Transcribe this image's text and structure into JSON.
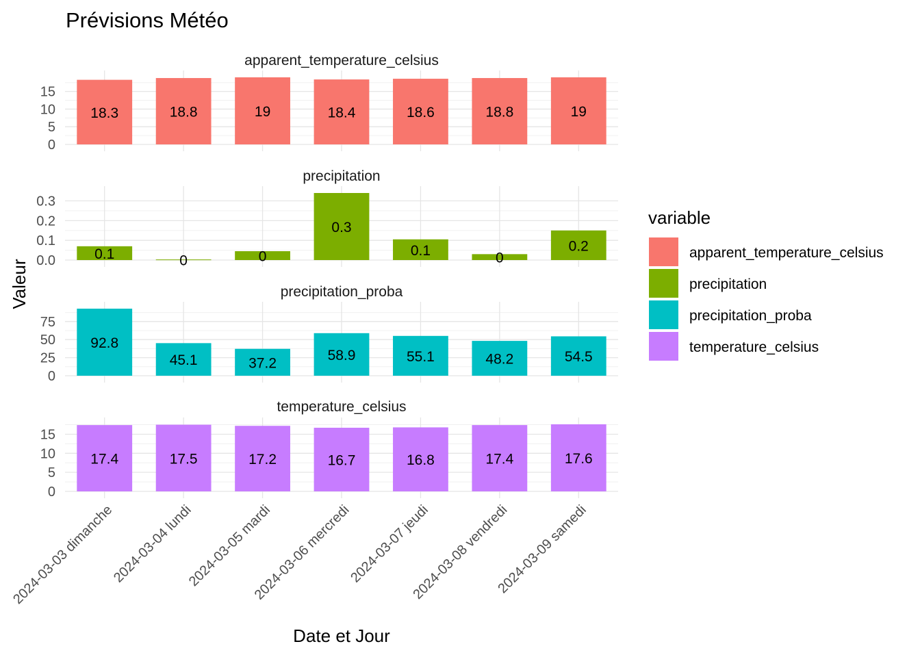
{
  "chart_data": {
    "type": "bar",
    "title": "Prévisions Météo",
    "xlabel": "Date et Jour",
    "ylabel": "Valeur",
    "categories": [
      "2024-03-03 dimanche",
      "2024-03-04 lundi",
      "2024-03-05 mardi",
      "2024-03-06 mercredi",
      "2024-03-07 jeudi",
      "2024-03-08 vendredi",
      "2024-03-09 samedi"
    ],
    "legend": {
      "title": "variable",
      "position": "right"
    },
    "grid": true,
    "panels": [
      {
        "name": "apparent_temperature_celsius",
        "color": "#F8766D",
        "ylim": [
          0,
          19
        ],
        "ticks": [
          0,
          5,
          10,
          15
        ],
        "tick_labels": [
          "0",
          "5",
          "10",
          "15"
        ],
        "values": [
          18.3,
          18.8,
          19.0,
          18.4,
          18.6,
          18.8,
          19.0
        ],
        "labels": [
          "18.3",
          "18.8",
          "19",
          "18.4",
          "18.6",
          "18.8",
          "19"
        ]
      },
      {
        "name": "precipitation",
        "color": "#7CAE00",
        "ylim": [
          0,
          0.34
        ],
        "ticks": [
          0,
          0.1,
          0.2,
          0.3
        ],
        "tick_labels": [
          "0.0",
          "0.1",
          "0.2",
          "0.3"
        ],
        "values": [
          0.07,
          0.003,
          0.045,
          0.34,
          0.105,
          0.03,
          0.15
        ],
        "labels": [
          "0.1",
          "0",
          "0",
          "0.3",
          "0.1",
          "0",
          "0.2"
        ]
      },
      {
        "name": "precipitation_proba",
        "color": "#00BFC4",
        "ylim": [
          0,
          92.8
        ],
        "ticks": [
          0,
          25,
          50,
          75
        ],
        "tick_labels": [
          "0",
          "25",
          "50",
          "75"
        ],
        "values": [
          92.8,
          45.1,
          37.2,
          58.9,
          55.1,
          48.2,
          54.5
        ],
        "labels": [
          "92.8",
          "45.1",
          "37.2",
          "58.9",
          "55.1",
          "48.2",
          "54.5"
        ]
      },
      {
        "name": "temperature_celsius",
        "color": "#C77CFF",
        "ylim": [
          0,
          17.6
        ],
        "ticks": [
          0,
          5,
          10,
          15
        ],
        "tick_labels": [
          "0",
          "5",
          "10",
          "15"
        ],
        "values": [
          17.4,
          17.5,
          17.2,
          16.7,
          16.8,
          17.4,
          17.6
        ],
        "labels": [
          "17.4",
          "17.5",
          "17.2",
          "16.7",
          "16.8",
          "17.4",
          "17.6"
        ]
      }
    ]
  }
}
